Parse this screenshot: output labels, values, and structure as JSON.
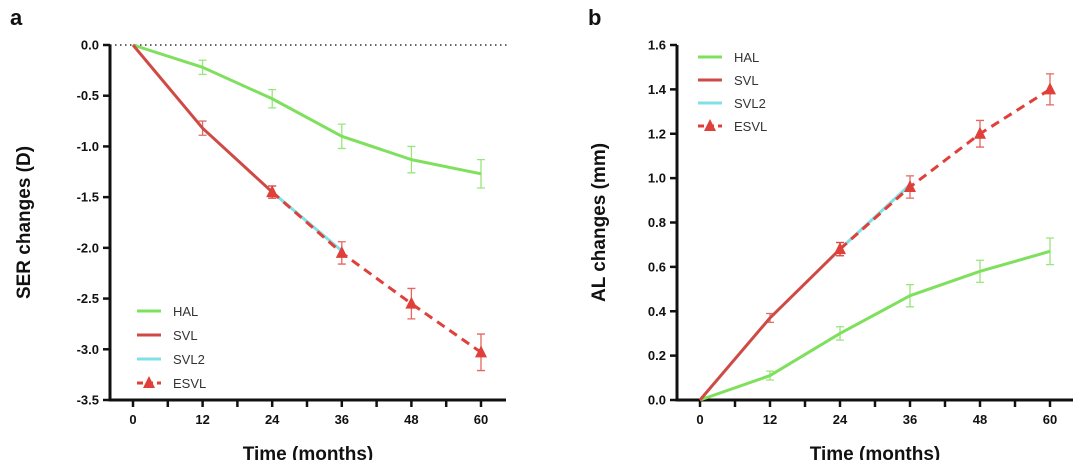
{
  "chart_data": [
    {
      "type": "line",
      "panel_label": "a",
      "xlabel": "Time (months)",
      "ylabel": "SER changes (D)",
      "x_ticks": [
        0,
        12,
        24,
        36,
        48,
        60
      ],
      "xlim": [
        0,
        60
      ],
      "ylim": [
        -3.5,
        0
      ],
      "y_ticks": [
        "0.0",
        "-0.5",
        "-1.0",
        "-1.5",
        "-2.0",
        "-2.5",
        "-3.0",
        "-3.5"
      ],
      "y_tick_values": [
        0,
        -0.5,
        -1,
        -1.5,
        -2,
        -2.5,
        -3,
        -3.5
      ],
      "reference_line": 0,
      "grid": false,
      "legend_position": "bottom-left",
      "series": [
        {
          "name": "HAL",
          "color": "#7ee05c",
          "style": "solid",
          "marker": "none",
          "x": [
            0,
            12,
            24,
            36,
            48,
            60
          ],
          "y": [
            0,
            -0.22,
            -0.53,
            -0.9,
            -1.13,
            -1.27
          ],
          "err": [
            0,
            0.07,
            0.09,
            0.12,
            0.13,
            0.14
          ]
        },
        {
          "name": "SVL",
          "color": "#cf4a45",
          "style": "solid",
          "marker": "none",
          "x": [
            0,
            12,
            24
          ],
          "y": [
            0,
            -0.82,
            -1.45
          ],
          "err": [
            0,
            0.07,
            0.06
          ]
        },
        {
          "name": "SVL2",
          "color": "#80e0e8",
          "style": "solid",
          "marker": "none",
          "x": [
            24,
            36
          ],
          "y": [
            -1.45,
            -2.03
          ],
          "err": [
            0,
            0
          ]
        },
        {
          "name": "ESVL",
          "color": "#e0403a",
          "style": "dashed",
          "marker": "triangle",
          "x": [
            24,
            36,
            48,
            60
          ],
          "y": [
            -1.45,
            -2.05,
            -2.55,
            -3.03
          ],
          "err": [
            0.06,
            0.11,
            0.15,
            0.18
          ]
        }
      ]
    },
    {
      "type": "line",
      "panel_label": "b",
      "xlabel": "Time (months)",
      "ylabel": "AL changes (mm)",
      "x_ticks": [
        0,
        12,
        24,
        36,
        48,
        60
      ],
      "xlim": [
        0,
        60
      ],
      "ylim": [
        0,
        1.6
      ],
      "y_ticks": [
        "0.0",
        "0.2",
        "0.4",
        "0.6",
        "0.8",
        "1.0",
        "1.2",
        "1.4",
        "1.6"
      ],
      "y_tick_values": [
        0,
        0.2,
        0.4,
        0.6,
        0.8,
        1.0,
        1.2,
        1.4,
        1.6
      ],
      "grid": false,
      "legend_position": "top-left",
      "series": [
        {
          "name": "HAL",
          "color": "#7ee05c",
          "style": "solid",
          "marker": "none",
          "x": [
            0,
            12,
            24,
            36,
            48,
            60
          ],
          "y": [
            0,
            0.11,
            0.3,
            0.47,
            0.58,
            0.67
          ],
          "err": [
            0,
            0.02,
            0.03,
            0.05,
            0.05,
            0.06
          ]
        },
        {
          "name": "SVL",
          "color": "#cf4a45",
          "style": "solid",
          "marker": "none",
          "x": [
            0,
            12,
            24
          ],
          "y": [
            0,
            0.37,
            0.68
          ],
          "err": [
            0,
            0.02,
            0.03
          ]
        },
        {
          "name": "SVL2",
          "color": "#80e0e8",
          "style": "solid",
          "marker": "none",
          "x": [
            24,
            36
          ],
          "y": [
            0.68,
            0.97
          ],
          "err": [
            0,
            0
          ]
        },
        {
          "name": "ESVL",
          "color": "#e0403a",
          "style": "dashed",
          "marker": "triangle",
          "x": [
            24,
            36,
            48,
            60
          ],
          "y": [
            0.68,
            0.96,
            1.2,
            1.4
          ],
          "err": [
            0.03,
            0.05,
            0.06,
            0.07
          ]
        }
      ]
    }
  ]
}
